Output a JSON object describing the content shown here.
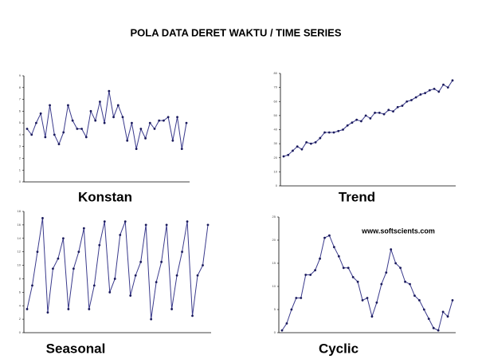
{
  "title": "POLA DATA DERET WAKTU / TIME SERIES",
  "chart_data": [
    {
      "type": "line",
      "label": "Konstan",
      "color": "#3a3a8c",
      "ylim": [
        0,
        9
      ],
      "yticks": [
        0,
        1,
        2,
        3,
        4,
        5,
        6,
        7,
        8,
        9
      ],
      "values": [
        4.5,
        4,
        5,
        5.8,
        3.8,
        6.5,
        4,
        3.2,
        4.2,
        6.5,
        5.2,
        4.5,
        4.5,
        3.8,
        6,
        5.2,
        6.8,
        5,
        7.7,
        5.5,
        6.5,
        5.5,
        3.5,
        5,
        2.8,
        4.5,
        3.7,
        5,
        4.5,
        5.2,
        5.2,
        5.5,
        3.5,
        5.5,
        2.8,
        5
      ]
    },
    {
      "type": "line",
      "label": "Trend",
      "color": "#3a3a8c",
      "ylim": [
        0,
        80
      ],
      "yticks": [
        0,
        10,
        20,
        30,
        40,
        50,
        60,
        70,
        80
      ],
      "values": [
        21,
        22,
        25,
        28,
        26,
        31,
        30,
        31,
        34,
        38,
        38,
        38,
        39,
        40,
        43,
        45,
        47,
        46,
        50,
        48,
        52,
        52,
        51,
        54,
        53,
        56,
        57,
        60,
        61,
        63,
        65,
        66,
        68,
        69,
        67,
        72,
        70,
        75
      ]
    },
    {
      "type": "line",
      "label": "Seasonal",
      "color": "#3a3a8c",
      "ylim": [
        0,
        18
      ],
      "yticks": [
        0,
        2,
        4,
        6,
        8,
        10,
        12,
        14,
        16,
        18
      ],
      "values": [
        3.5,
        7,
        12,
        17,
        3,
        9.5,
        11,
        14,
        3.5,
        9.5,
        12,
        15.5,
        3.5,
        7,
        13,
        16.5,
        6,
        8,
        14.5,
        16.5,
        5.5,
        8.5,
        10.5,
        16,
        2,
        7.5,
        10.5,
        16,
        3.5,
        8.5,
        12,
        16.5,
        2.5,
        8.5,
        10,
        16
      ]
    },
    {
      "type": "line",
      "label": "Cyclic",
      "color": "#3a3a8c",
      "ylim": [
        0,
        25
      ],
      "yticks": [
        0,
        5,
        10,
        15,
        20,
        25
      ],
      "annotation": "www.softscients.com",
      "values": [
        0.5,
        2,
        5,
        7.5,
        7.5,
        12.5,
        12.5,
        13.5,
        16,
        20.5,
        21,
        18.5,
        16.5,
        14,
        14,
        12,
        11,
        7,
        7.5,
        3.5,
        6.5,
        10.5,
        13,
        18,
        15,
        14,
        11,
        10.5,
        8,
        7,
        5,
        3,
        1,
        0.5,
        4.5,
        3.5,
        7
      ]
    }
  ]
}
